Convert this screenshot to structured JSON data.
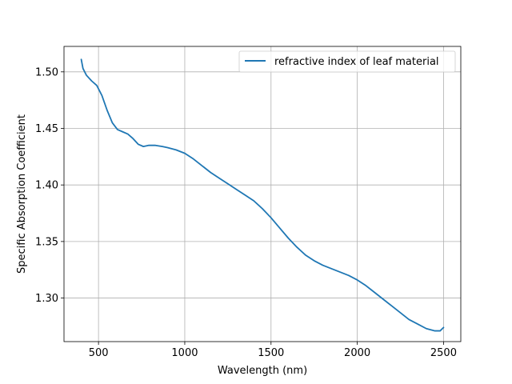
{
  "chart_data": {
    "type": "line",
    "title": "",
    "xlabel": "Wavelength (nm)",
    "ylabel": "Specific Absorption Coefficient",
    "xlim": [
      300,
      2600
    ],
    "ylim": [
      1.2615,
      1.5225
    ],
    "xticks": [
      500,
      1000,
      1500,
      2000,
      2500
    ],
    "xtick_labels": [
      "500",
      "1000",
      "1500",
      "2000",
      "2500"
    ],
    "yticks": [
      1.3,
      1.35,
      1.4,
      1.45,
      1.5
    ],
    "ytick_labels": [
      "1.30",
      "1.35",
      "1.40",
      "1.45",
      "1.50"
    ],
    "grid": true,
    "legend_position": "top-right",
    "series": [
      {
        "name": "refractive index of leaf material",
        "color": "#1f77b4",
        "x": [
          400,
          410,
          430,
          460,
          490,
          520,
          550,
          580,
          610,
          640,
          670,
          700,
          730,
          760,
          790,
          830,
          870,
          900,
          950,
          1000,
          1050,
          1100,
          1150,
          1200,
          1250,
          1300,
          1350,
          1400,
          1450,
          1500,
          1550,
          1600,
          1650,
          1700,
          1750,
          1800,
          1850,
          1900,
          1950,
          2000,
          2050,
          2100,
          2150,
          2200,
          2250,
          2300,
          2350,
          2400,
          2450,
          2480,
          2500
        ],
        "y": [
          1.511,
          1.503,
          1.497,
          1.492,
          1.488,
          1.479,
          1.466,
          1.455,
          1.449,
          1.447,
          1.445,
          1.441,
          1.436,
          1.434,
          1.435,
          1.435,
          1.434,
          1.433,
          1.431,
          1.428,
          1.423,
          1.417,
          1.411,
          1.406,
          1.401,
          1.396,
          1.391,
          1.386,
          1.379,
          1.371,
          1.362,
          1.353,
          1.345,
          1.338,
          1.333,
          1.329,
          1.326,
          1.323,
          1.32,
          1.316,
          1.311,
          1.305,
          1.299,
          1.293,
          1.287,
          1.281,
          1.277,
          1.273,
          1.271,
          1.271,
          1.274
        ]
      }
    ]
  }
}
